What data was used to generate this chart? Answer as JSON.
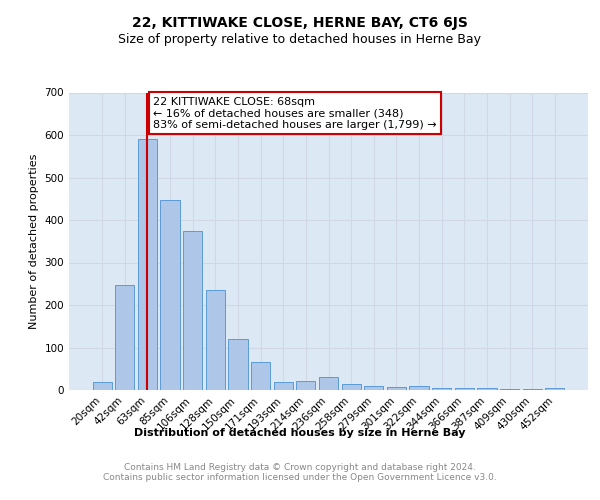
{
  "title": "22, KITTIWAKE CLOSE, HERNE BAY, CT6 6JS",
  "subtitle": "Size of property relative to detached houses in Herne Bay",
  "xlabel": "Distribution of detached houses by size in Herne Bay",
  "ylabel": "Number of detached properties",
  "bar_labels": [
    "20sqm",
    "42sqm",
    "63sqm",
    "85sqm",
    "106sqm",
    "128sqm",
    "150sqm",
    "171sqm",
    "193sqm",
    "214sqm",
    "236sqm",
    "258sqm",
    "279sqm",
    "301sqm",
    "322sqm",
    "344sqm",
    "366sqm",
    "387sqm",
    "409sqm",
    "430sqm",
    "452sqm"
  ],
  "bar_values": [
    18,
    248,
    590,
    448,
    375,
    235,
    120,
    67,
    20,
    22,
    30,
    13,
    10,
    8,
    9,
    5,
    5,
    4,
    3,
    2,
    5
  ],
  "bar_color": "#aec6e8",
  "bar_edge_color": "#5b9bd5",
  "grid_color": "#d0d8e8",
  "background_color": "#dde8f5",
  "vline_x": 2,
  "vline_color": "#cc0000",
  "annotation_text": "22 KITTIWAKE CLOSE: 68sqm\n← 16% of detached houses are smaller (348)\n83% of semi-detached houses are larger (1,799) →",
  "annotation_box_color": "#ffffff",
  "annotation_box_edge": "#cc0000",
  "ylim": [
    0,
    700
  ],
  "yticks": [
    0,
    100,
    200,
    300,
    400,
    500,
    600,
    700
  ],
  "footer_text": "Contains HM Land Registry data © Crown copyright and database right 2024.\nContains public sector information licensed under the Open Government Licence v3.0.",
  "title_fontsize": 10,
  "subtitle_fontsize": 9,
  "axis_label_fontsize": 8,
  "tick_fontsize": 7.5,
  "annotation_fontsize": 8,
  "footer_fontsize": 6.5
}
